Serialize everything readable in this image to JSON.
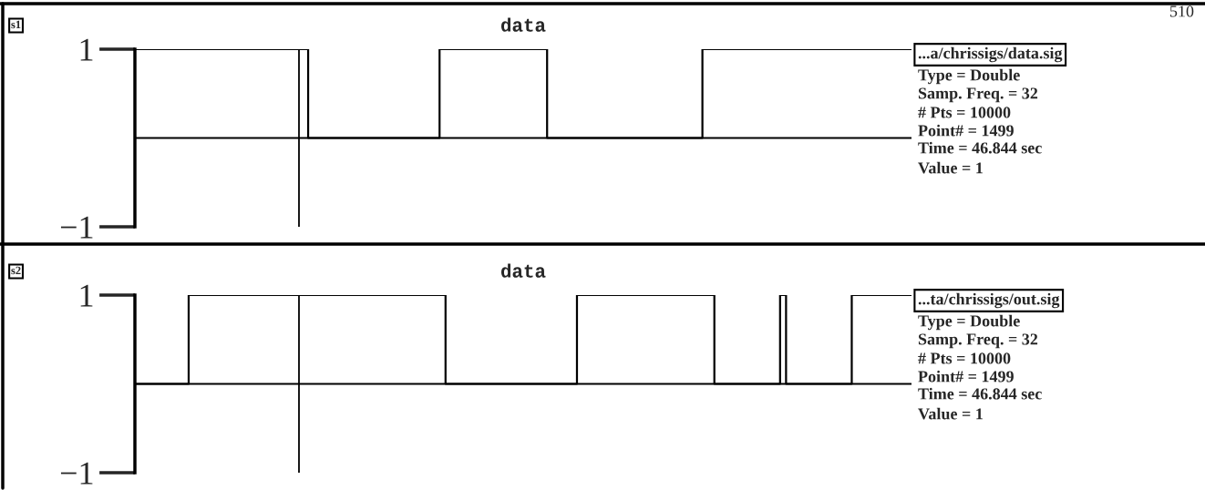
{
  "chart_data": [
    {
      "type": "step",
      "title": "data",
      "tick_labels": "y",
      "ylim": [
        -1,
        1
      ],
      "yticks": [
        {
          "value": -1,
          "label": "−1"
        },
        1
      ],
      "categories": [
        null,
        null,
        null,
        null,
        null,
        null,
        null,
        null,
        null,
        null,
        null,
        null,
        null,
        null,
        null,
        null,
        null,
        null,
        null,
        null,
        null,
        null,
        null,
        null,
        null,
        null,
        null,
        null,
        null,
        null,
        null,
        null,
        null,
        null,
        null,
        null,
        null,
        null,
        null,
        null,
        null,
        null,
        null,
        null,
        null,
        null,
        null,
        null,
        null,
        null,
        null,
        null,
        null,
        null,
        null,
        null,
        null,
        null,
        null,
        null,
        null,
        null,
        null,
        null,
        null,
        null,
        null,
        null,
        null,
        null,
        null,
        null,
        null,
        null,
        null,
        null,
        null,
        null,
        null,
        null,
        null,
        null,
        null,
        null,
        null,
        null,
        null,
        null,
        null,
        null,
        null,
        null,
        null,
        null,
        null,
        null,
        null,
        null,
        null,
        null,
        null,
        null,
        null,
        null,
        null,
        null,
        null,
        null,
        null,
        null,
        null,
        null,
        null,
        null,
        null,
        null,
        null,
        null,
        null,
        null,
        null,
        null,
        null,
        null,
        null,
        null,
        null,
        null,
        null,
        null,
        null
      ],
      "series": [
        {
          "color": "#000000",
          "values": [
            1,
            1,
            1,
            1,
            1,
            1,
            1,
            1,
            1,
            1,
            1,
            1,
            1,
            1,
            1,
            1,
            1,
            1,
            1,
            1,
            1,
            1,
            1,
            1,
            1,
            1,
            1,
            1,
            1,
            0,
            0,
            0,
            0,
            0,
            0,
            0,
            0,
            0,
            0,
            0,
            0,
            0,
            0,
            0,
            0,
            0,
            0,
            0,
            0,
            0,
            0,
            1,
            1,
            1,
            1,
            1,
            1,
            1,
            1,
            1,
            1,
            1,
            1,
            1,
            1,
            1,
            1,
            1,
            1,
            0,
            0,
            0,
            0,
            0,
            0,
            0,
            0,
            0,
            0,
            0,
            0,
            0,
            0,
            0,
            0,
            0,
            0,
            0,
            0,
            0,
            0,
            0,
            0,
            0,
            0,
            1,
            1,
            1,
            1,
            1,
            1,
            1,
            1,
            1,
            1,
            1,
            1,
            1,
            1,
            1,
            1,
            1,
            1,
            1,
            1,
            1,
            1,
            1,
            1,
            1,
            1,
            1,
            1,
            1,
            1,
            1,
            1,
            1,
            1,
            1,
            1
          ]
        }
      ],
      "ref_lines": [
        {
          "axis": "y",
          "value": 0
        }
      ],
      "annotations": [
        "s1",
        "...a/chrissigs/data.sig",
        "Type = Double",
        "Samp. Freq. = 32",
        "# Pts = 10000",
        "Point# = 1499",
        "Time = 46.844 sec",
        "Value = 1",
        "510"
      ]
    },
    {
      "type": "step",
      "title": "data",
      "tick_labels": "y",
      "ylim": [
        -1,
        1
      ],
      "yticks": [
        {
          "value": -1,
          "label": "−1"
        },
        1
      ],
      "categories": [
        null,
        null,
        null,
        null,
        null,
        null,
        null,
        null,
        null,
        null,
        null,
        null,
        null,
        null,
        null,
        null,
        null,
        null,
        null,
        null,
        null,
        null,
        null,
        null,
        null,
        null,
        null,
        null,
        null,
        null,
        null,
        null,
        null,
        null,
        null,
        null,
        null,
        null,
        null,
        null,
        null,
        null,
        null,
        null,
        null,
        null,
        null,
        null,
        null,
        null,
        null,
        null,
        null,
        null,
        null,
        null,
        null,
        null,
        null,
        null,
        null,
        null,
        null,
        null,
        null,
        null,
        null,
        null,
        null,
        null,
        null,
        null,
        null,
        null,
        null,
        null,
        null,
        null,
        null,
        null,
        null,
        null,
        null,
        null,
        null,
        null,
        null,
        null,
        null,
        null,
        null,
        null,
        null,
        null,
        null,
        null,
        null,
        null,
        null,
        null,
        null,
        null,
        null,
        null,
        null,
        null,
        null,
        null,
        null,
        null,
        null,
        null,
        null,
        null,
        null,
        null,
        null,
        null,
        null,
        null,
        null,
        null,
        null,
        null,
        null,
        null,
        null,
        null,
        null,
        null,
        null
      ],
      "series": [
        {
          "color": "#000000",
          "values": [
            0,
            0,
            0,
            0,
            0,
            0,
            0,
            0,
            0,
            1,
            1,
            1,
            1,
            1,
            1,
            1,
            1,
            1,
            1,
            1,
            1,
            1,
            1,
            1,
            1,
            1,
            1,
            1,
            1,
            1,
            1,
            1,
            1,
            1,
            1,
            1,
            1,
            1,
            1,
            1,
            1,
            1,
            1,
            1,
            1,
            1,
            1,
            1,
            1,
            1,
            1,
            1,
            0,
            0,
            0,
            0,
            0,
            0,
            0,
            0,
            0,
            0,
            0,
            0,
            0,
            0,
            0,
            0,
            0,
            0,
            0,
            0,
            0,
            0,
            1,
            1,
            1,
            1,
            1,
            1,
            1,
            1,
            1,
            1,
            1,
            1,
            1,
            1,
            1,
            1,
            1,
            1,
            1,
            1,
            1,
            1,
            1,
            0,
            0,
            0,
            0,
            0,
            0,
            0,
            0,
            0,
            0,
            0,
            1,
            0,
            0,
            0,
            0,
            0,
            0,
            0,
            0,
            0,
            0,
            0,
            1,
            1,
            1,
            1,
            1,
            1,
            1,
            1,
            1,
            1,
            1
          ]
        }
      ],
      "ref_lines": [
        {
          "axis": "y",
          "value": 0
        }
      ],
      "annotations": [
        "s2",
        "...ta/chrissigs/out.sig",
        "Type = Double",
        "Samp. Freq. = 32",
        "# Pts = 10000",
        "Point# = 1499",
        "Time = 46.844 sec",
        "Value = 1"
      ]
    }
  ]
}
